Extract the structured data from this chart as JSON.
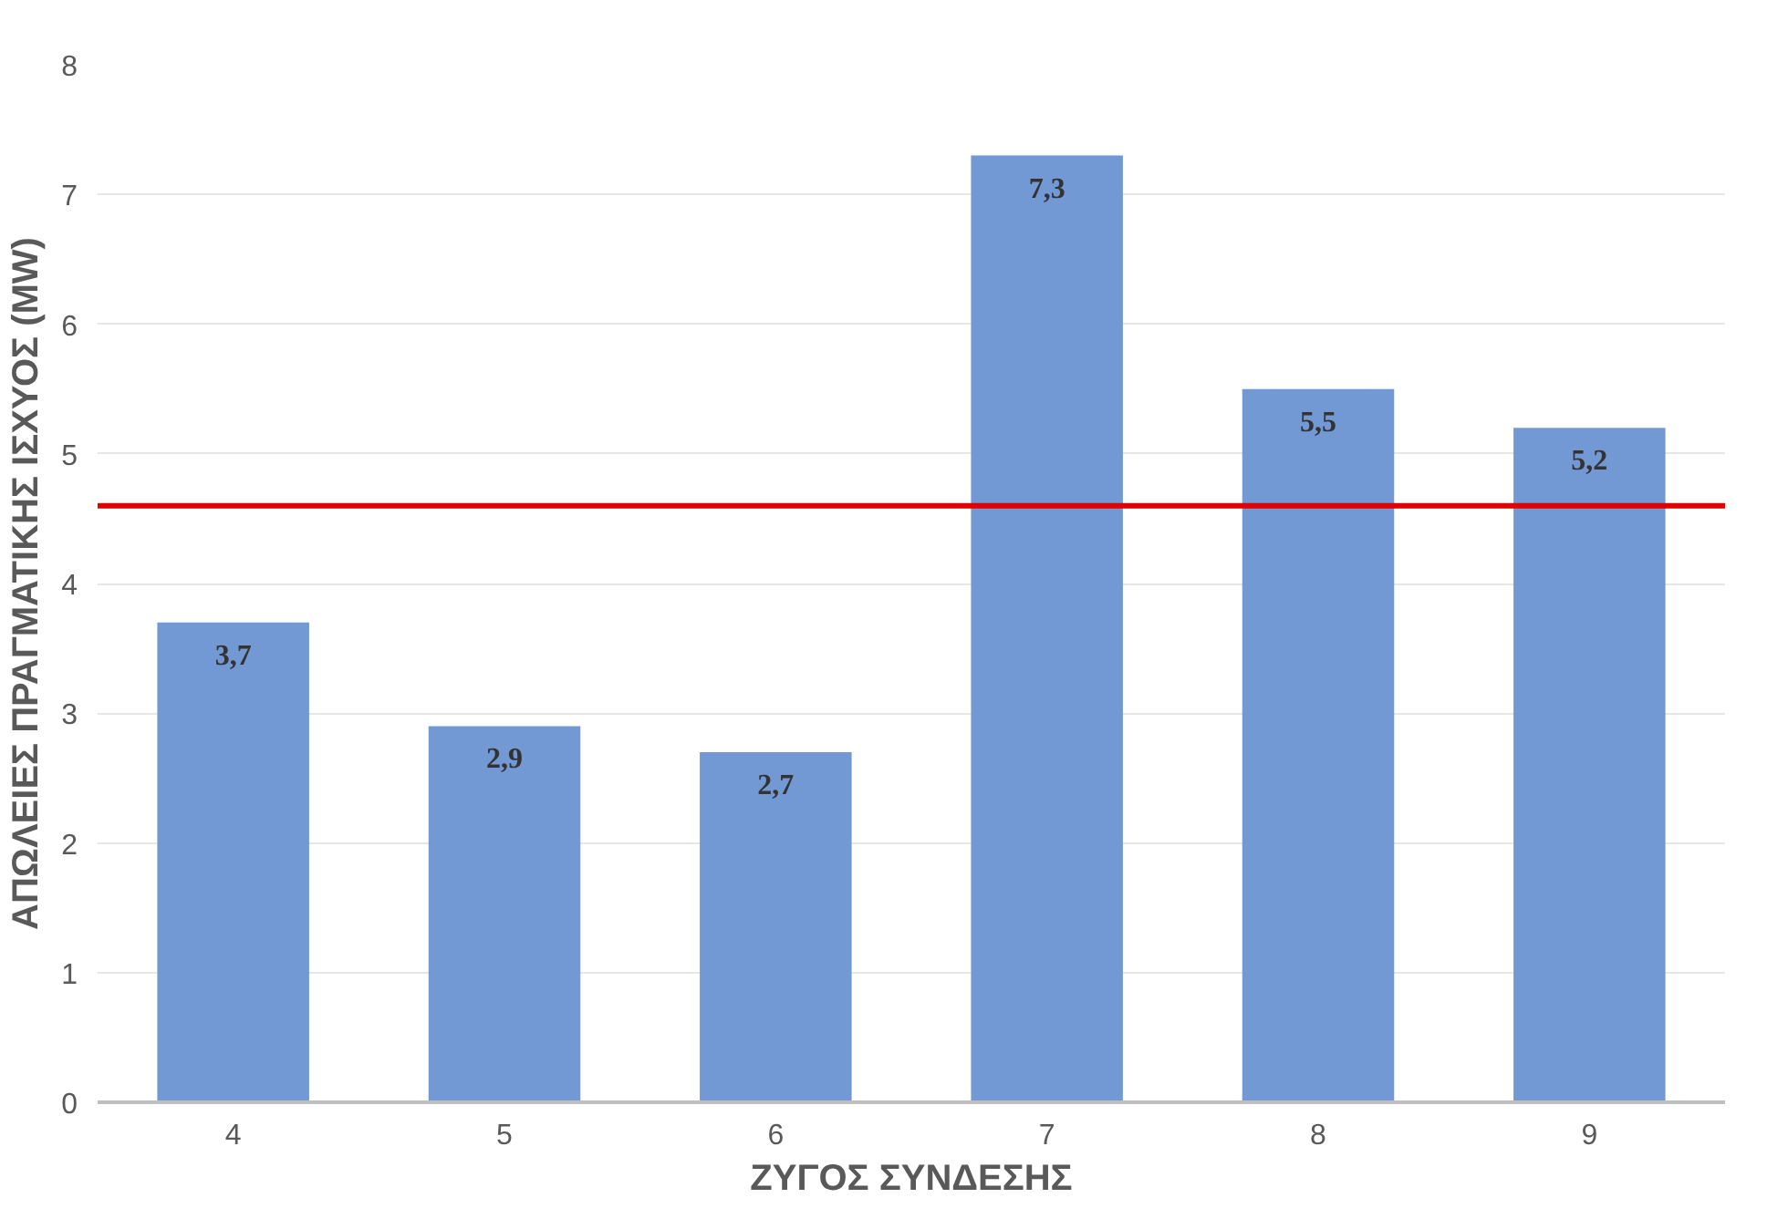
{
  "chart_data": {
    "type": "bar",
    "xlabel": "ΖΥΓΟΣ ΣΥΝΔΕΣΗΣ",
    "ylabel": "ΑΠΩΛΕΙΕΣ ΠΡΑΓΜΑΤΙΚΗΣ ΙΣΧΥΟΣ (MW)",
    "categories": [
      "4",
      "5",
      "6",
      "7",
      "8",
      "9"
    ],
    "values": [
      3.7,
      2.9,
      2.7,
      7.3,
      5.5,
      5.2
    ],
    "value_labels": [
      "3,7",
      "2,9",
      "2,7",
      "7,3",
      "5,5",
      "5,2"
    ],
    "color": "#7399d4",
    "ylim": [
      0,
      8
    ],
    "yticks": [
      0,
      1,
      2,
      3,
      4,
      5,
      6,
      7,
      8
    ],
    "grid": "y",
    "ref_lines": [
      {
        "axis": "y",
        "value": 4.6,
        "color": "#e00000",
        "line_style": "solid"
      }
    ]
  }
}
